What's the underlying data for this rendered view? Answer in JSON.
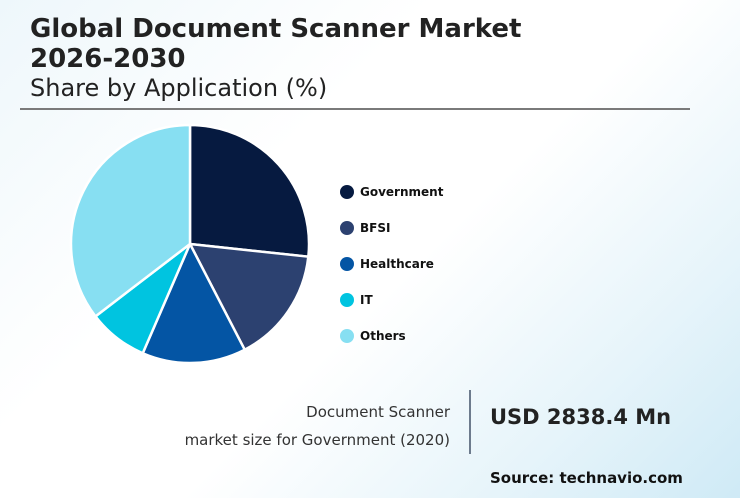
{
  "header": {
    "title_line1": "Global Document Scanner Market",
    "title_line2": "2026-2030",
    "subtitle": "Share by Application (%)"
  },
  "legend": [
    {
      "label": "Government",
      "color": "#061a40"
    },
    {
      "label": "BFSI",
      "color": "#2c4170"
    },
    {
      "label": "Healthcare",
      "color": "#0455a4"
    },
    {
      "label": "IT",
      "color": "#00c4e0"
    },
    {
      "label": "Others",
      "color": "#87dff2"
    }
  ],
  "note": {
    "line1": "Document Scanner",
    "line2": "market size for Government (2020)",
    "value": "USD 2838.4 Mn"
  },
  "source": "Source: technavio.com",
  "chart_data": {
    "type": "pie",
    "title": "Global Document Scanner Market 2026-2030",
    "subtitle": "Share by Application (%)",
    "categories": [
      "Government",
      "BFSI",
      "Healthcare",
      "IT",
      "Others"
    ],
    "values": [
      26.7,
      15.7,
      14.1,
      8.1,
      35.4
    ],
    "colors": [
      "#061a40",
      "#2c4170",
      "#0455a4",
      "#00c4e0",
      "#87dff2"
    ],
    "legend_position": "right",
    "start_angle": "12 o'clock, clockwise",
    "annotation": "Document Scanner market size for Government (2020): USD 2838.4 Mn"
  }
}
